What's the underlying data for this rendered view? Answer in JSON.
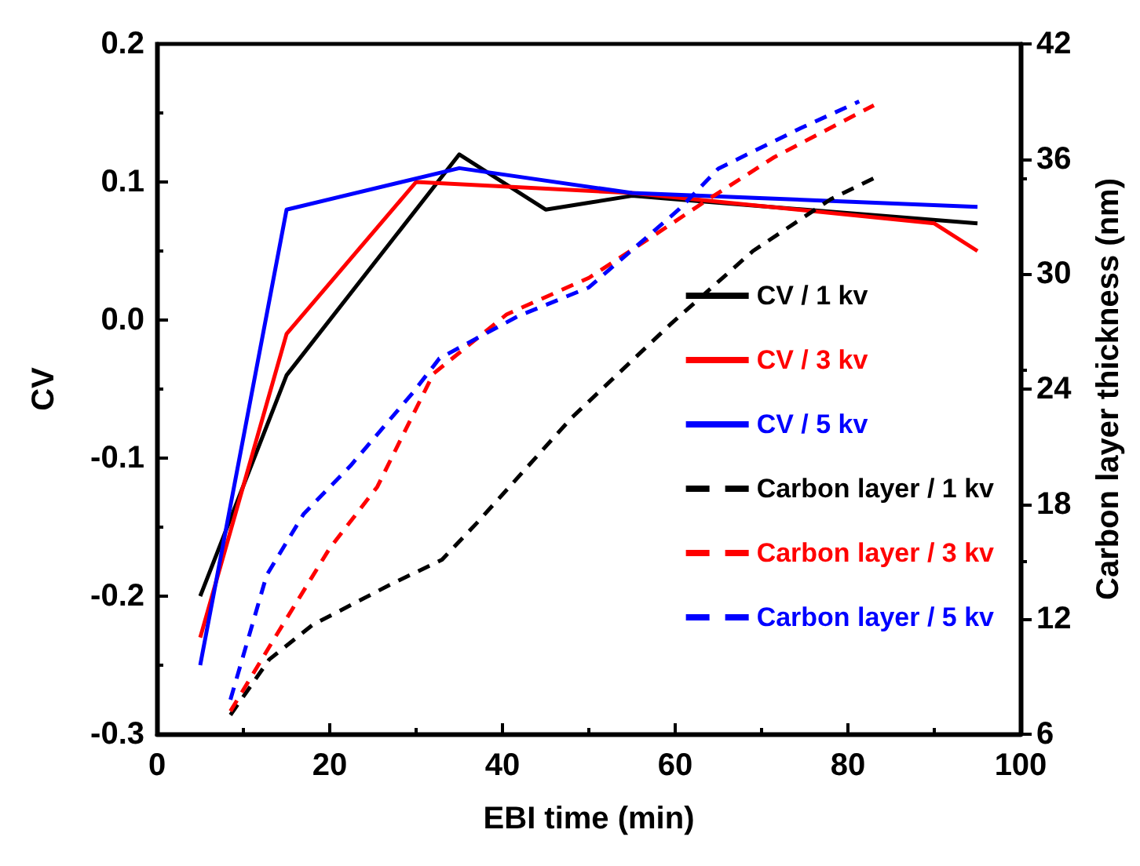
{
  "chart_data": {
    "type": "line",
    "xlabel": "EBI time (min)",
    "ylabel": "CV",
    "y2label": "Carbon layer thickness (nm)",
    "xlim": [
      0,
      100
    ],
    "xticks": [
      0,
      20,
      40,
      60,
      80,
      100
    ],
    "ylim": [
      -0.3,
      0.2
    ],
    "yticks": [
      -0.3,
      -0.2,
      -0.1,
      {
        "value": 0,
        "label": "0.0"
      },
      0.1,
      0.2
    ],
    "y2lim": [
      6,
      42
    ],
    "y2ticks": [
      6,
      12,
      18,
      24,
      30,
      36,
      42
    ],
    "grid": false,
    "legend": "right",
    "marker": "none",
    "series": [
      {
        "name": "CV / 1 kv",
        "color": "#000000",
        "line_style": "solid",
        "x": [
          5,
          15,
          35,
          45,
          55,
          95
        ],
        "values": [
          -0.2,
          -0.04,
          0.12,
          0.08,
          0.09,
          0.07
        ]
      },
      {
        "name": "CV / 3 kv",
        "color": "#ff0000",
        "line_style": "solid",
        "x": [
          5,
          15,
          30,
          55,
          90,
          95
        ],
        "values": [
          -0.23,
          -0.01,
          0.1,
          0.092,
          0.07,
          0.05
        ]
      },
      {
        "name": "CV / 5 kv",
        "color": "#0000ff",
        "line_style": "solid",
        "x": [
          5,
          15,
          35,
          55,
          95
        ],
        "values": [
          -0.25,
          0.08,
          0.11,
          0.092,
          0.082
        ]
      },
      {
        "name": "Carbon layer / 1 kv",
        "color": "#000000",
        "line_style": "dashed",
        "axis": "y2",
        "x": [
          8.5,
          13,
          18,
          27,
          33,
          37,
          48,
          59.5,
          69,
          78,
          83.5
        ],
        "values": [
          7,
          9.9,
          11.7,
          13.8,
          15.1,
          17,
          22.5,
          27.4,
          31.2,
          33.9,
          35.1
        ]
      },
      {
        "name": "Carbon layer / 3 kv",
        "color": "#ff0000",
        "line_style": "dashed",
        "axis": "y2",
        "x": [
          8.5,
          14,
          20,
          25.5,
          32,
          40.5,
          50,
          57.5,
          63.5,
          71.5,
          83
        ],
        "values": [
          7.2,
          11.3,
          15.7,
          18.9,
          24.8,
          27.9,
          29.8,
          32,
          33.8,
          36.1,
          38.8
        ]
      },
      {
        "name": "Carbon layer / 5 kv",
        "color": "#0000ff",
        "line_style": "dashed",
        "axis": "y2",
        "x": [
          8.5,
          12.7,
          17,
          22.4,
          29.6,
          32.7,
          41.8,
          50,
          60.5,
          65,
          74.5,
          81.3
        ],
        "values": [
          7.8,
          14.3,
          17.5,
          20,
          23.8,
          25.6,
          27.8,
          29.3,
          33.4,
          35.5,
          37.6,
          39
        ]
      }
    ]
  }
}
